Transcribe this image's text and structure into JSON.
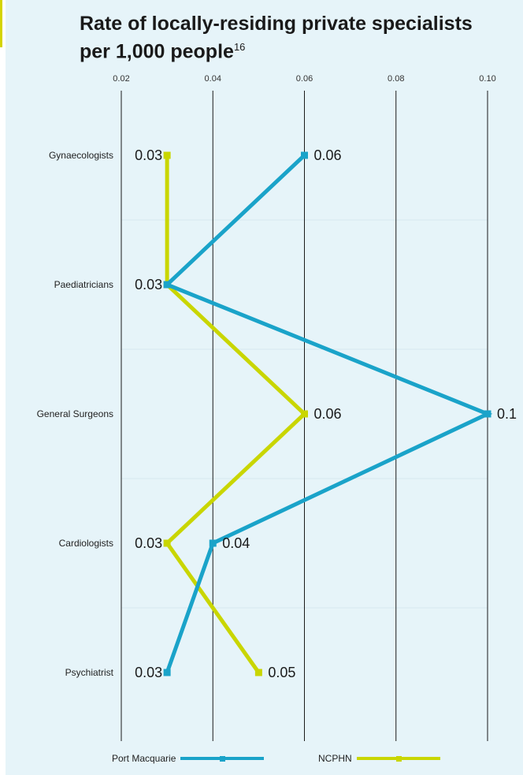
{
  "title": "Rate of locally-residing private specialists per 1,000 people",
  "title_main": "Rate of locally-residing private specialists",
  "title_line2": "per 1,000 people",
  "title_footnote": "16",
  "chart_data": {
    "type": "line",
    "orientation": "horizontal",
    "categories": [
      "Gynaecologists",
      "Paediatricians",
      "General Surgeons",
      "Cardiologists",
      "Psychiatrist"
    ],
    "x_ticks": [
      "0.02",
      "0.04",
      "0.06",
      "0.08",
      "0.10"
    ],
    "xlim": [
      0.02,
      0.1
    ],
    "grid": true,
    "legend_position": "bottom",
    "series": [
      {
        "name": "Port Macquarie",
        "color": "#1aa3c9",
        "values": [
          0.06,
          0.03,
          0.1,
          0.04,
          0.03
        ],
        "labels": [
          "0.06",
          "0.03",
          "0.1",
          "0.04",
          "0.03"
        ]
      },
      {
        "name": "NCPHN",
        "color": "#c9d600",
        "values": [
          0.03,
          0.03,
          0.06,
          0.03,
          0.05
        ],
        "labels": [
          "0.03",
          "0.03",
          "0.06",
          "0.03",
          "0.05"
        ]
      }
    ]
  }
}
